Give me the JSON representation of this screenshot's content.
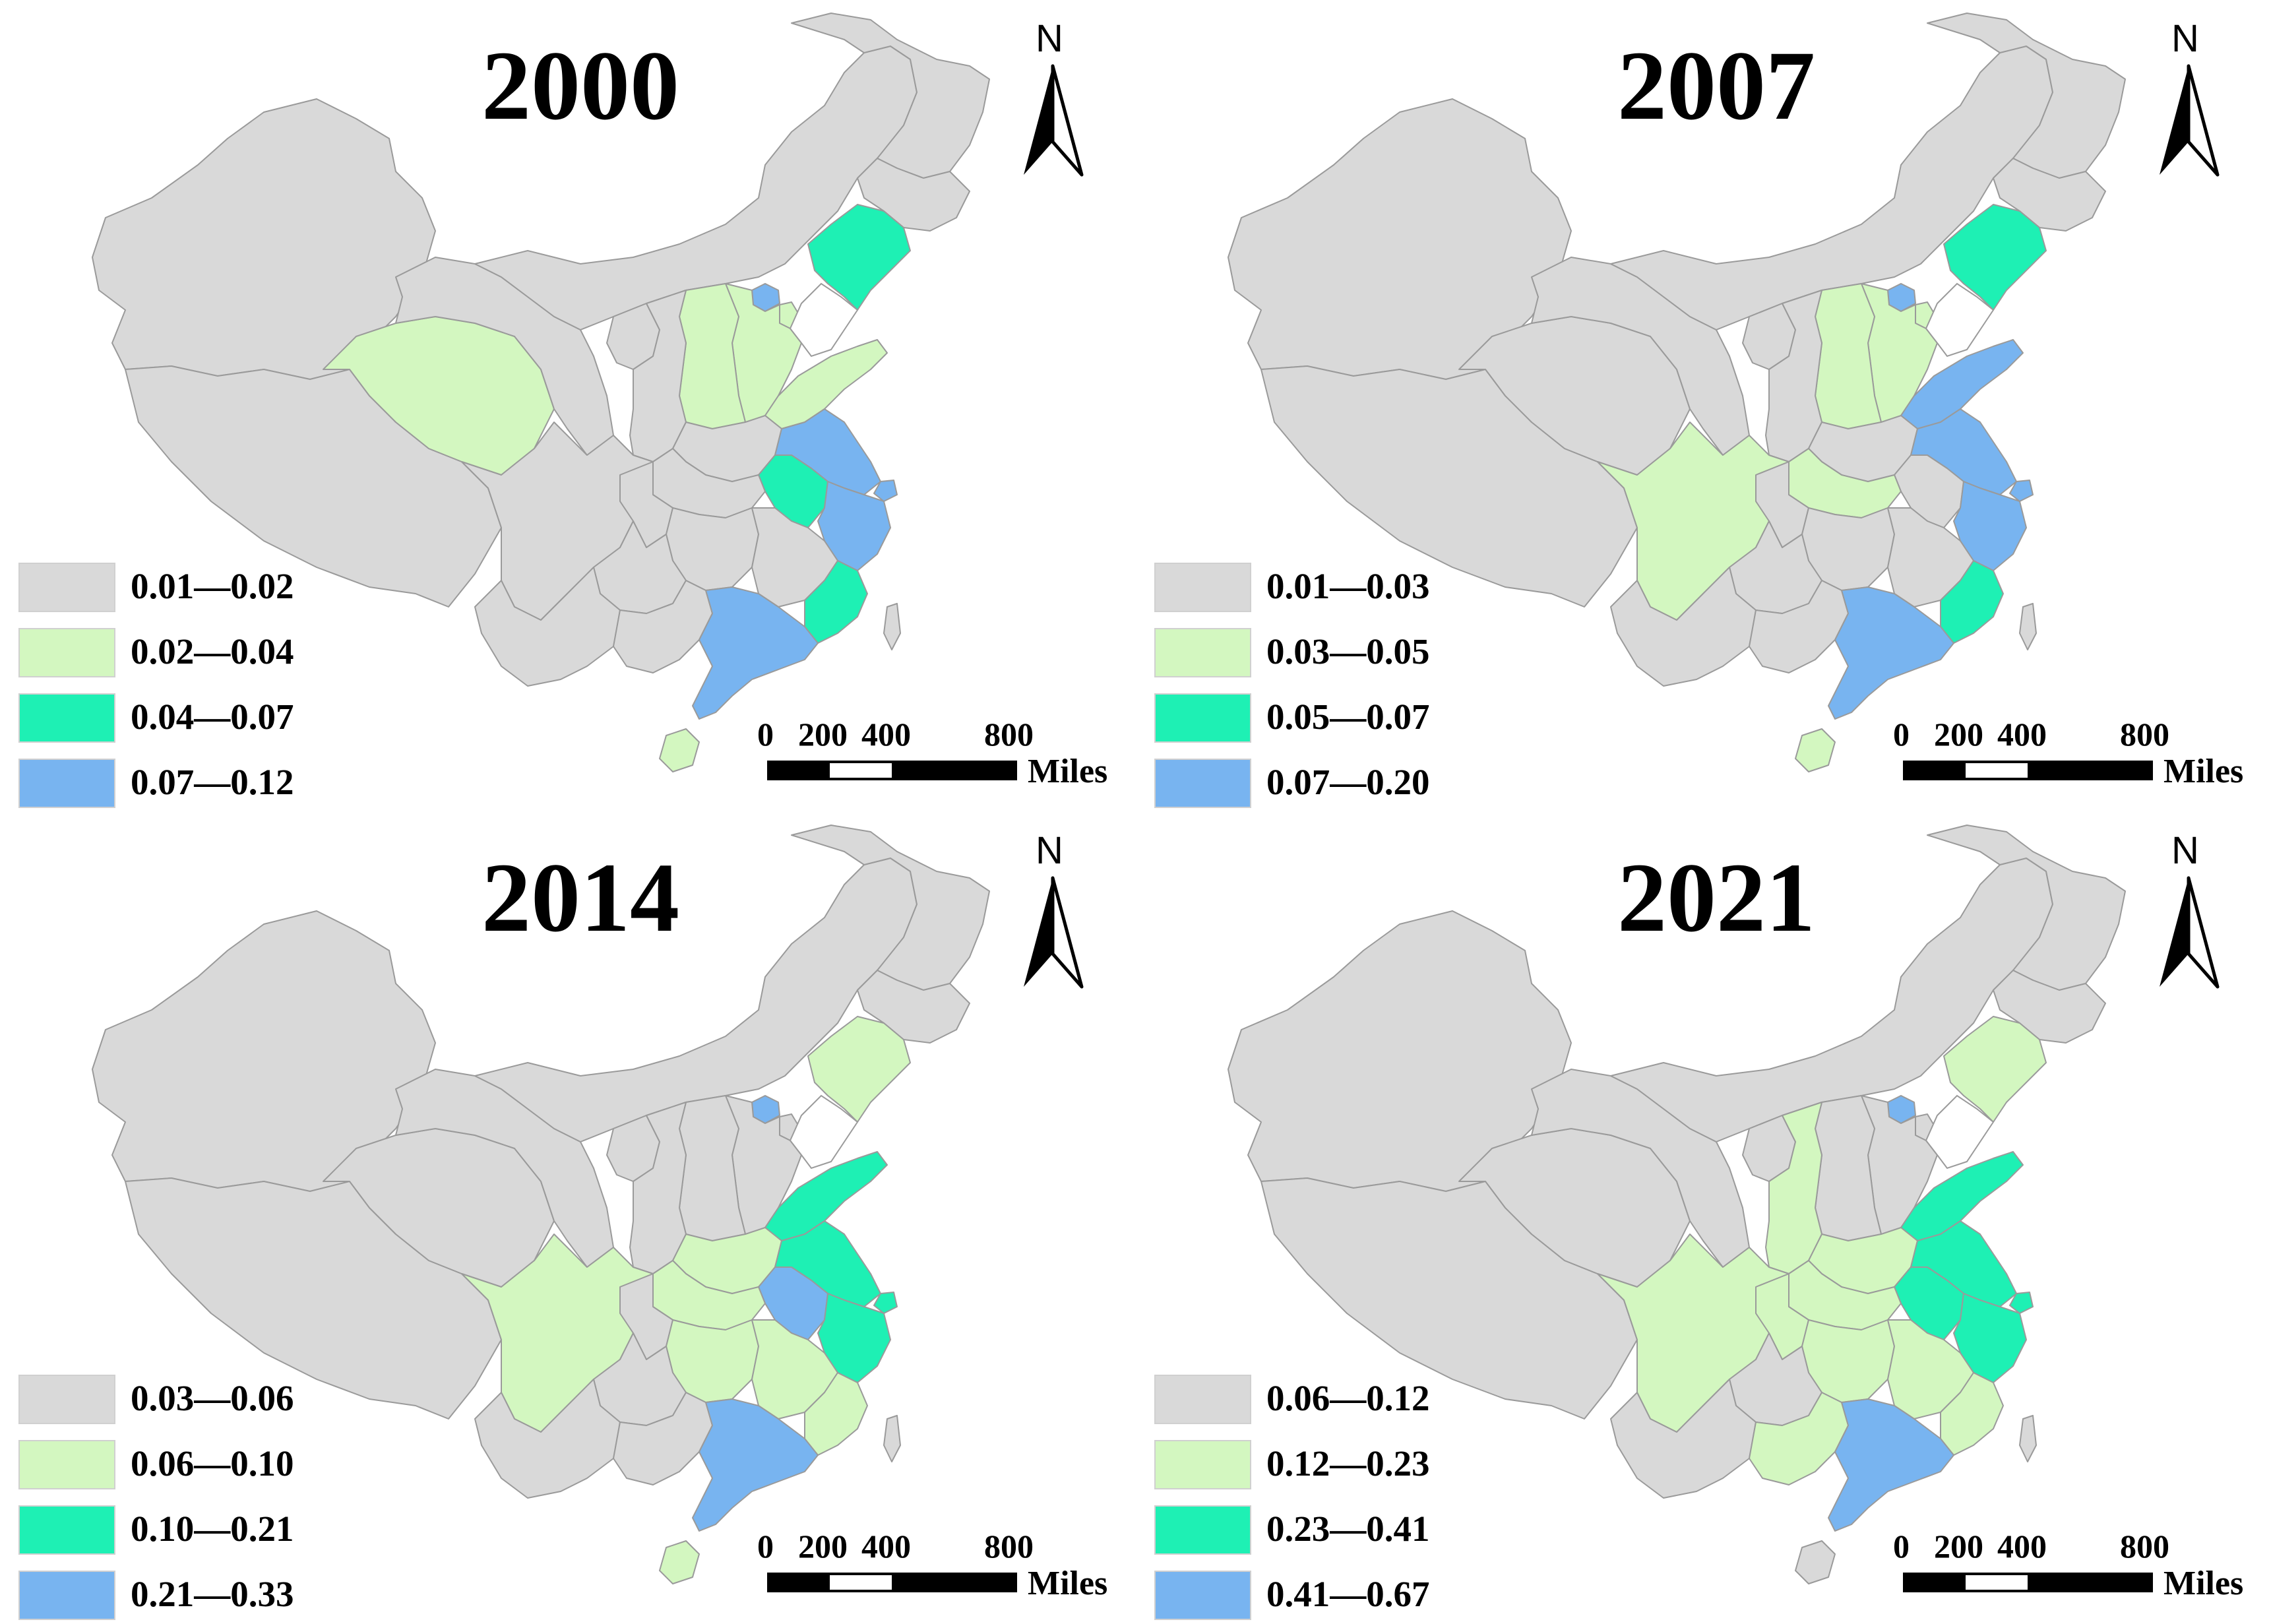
{
  "colors": {
    "class1": "#d9d9d9",
    "class2": "#d3f7c0",
    "class3": "#1ef0b4",
    "class4": "#78b4f0",
    "border": "#9a9a9a"
  },
  "north_arrow": {
    "label": "N"
  },
  "scale_bar": {
    "labels": [
      "0",
      "200",
      "400",
      "800"
    ],
    "unit": "Miles"
  },
  "panels": [
    {
      "year": "2000",
      "legend": [
        "0.01—0.02",
        "0.02—0.04",
        "0.04—0.07",
        "0.07—0.12"
      ],
      "highlighted_regions": [
        {
          "region": "liaoning",
          "class": 3
        },
        {
          "region": "beijing",
          "class": 4
        },
        {
          "region": "hebei",
          "class": 2
        },
        {
          "region": "tianjin",
          "class": 2
        },
        {
          "region": "shanxi",
          "class": 2
        },
        {
          "region": "shandong",
          "class": 2
        },
        {
          "region": "qinghai",
          "class": 2
        },
        {
          "region": "anhui",
          "class": 3
        },
        {
          "region": "jiangsu",
          "class": 4
        },
        {
          "region": "shanghai",
          "class": 4
        },
        {
          "region": "zhejiang",
          "class": 4
        },
        {
          "region": "fujian",
          "class": 3
        },
        {
          "region": "guangdong",
          "class": 4
        },
        {
          "region": "hainan",
          "class": 2
        }
      ]
    },
    {
      "year": "2007",
      "legend": [
        "0.01—0.03",
        "0.03—0.05",
        "0.05—0.07",
        "0.07—0.20"
      ],
      "highlighted_regions": [
        {
          "region": "liaoning",
          "class": 3
        },
        {
          "region": "beijing",
          "class": 4
        },
        {
          "region": "hebei",
          "class": 2
        },
        {
          "region": "tianjin",
          "class": 2
        },
        {
          "region": "shanxi",
          "class": 2
        },
        {
          "region": "shandong",
          "class": 4
        },
        {
          "region": "jiangsu",
          "class": 4
        },
        {
          "region": "shanghai",
          "class": 4
        },
        {
          "region": "zhejiang",
          "class": 4
        },
        {
          "region": "sichuan",
          "class": 2
        },
        {
          "region": "hubei",
          "class": 2
        },
        {
          "region": "fujian",
          "class": 3
        },
        {
          "region": "guangdong",
          "class": 4
        },
        {
          "region": "hainan",
          "class": 2
        }
      ]
    },
    {
      "year": "2014",
      "legend": [
        "0.03—0.06",
        "0.06—0.10",
        "0.10—0.21",
        "0.21—0.33"
      ],
      "highlighted_regions": [
        {
          "region": "liaoning",
          "class": 2
        },
        {
          "region": "beijing",
          "class": 4
        },
        {
          "region": "shandong",
          "class": 3
        },
        {
          "region": "jiangsu",
          "class": 3
        },
        {
          "region": "shanghai",
          "class": 3
        },
        {
          "region": "zhejiang",
          "class": 3
        },
        {
          "region": "anhui",
          "class": 4
        },
        {
          "region": "sichuan",
          "class": 2
        },
        {
          "region": "henan",
          "class": 2
        },
        {
          "region": "hubei",
          "class": 2
        },
        {
          "region": "hunan",
          "class": 2
        },
        {
          "region": "jiangxi",
          "class": 2
        },
        {
          "region": "fujian",
          "class": 2
        },
        {
          "region": "guangdong",
          "class": 4
        },
        {
          "region": "hainan",
          "class": 2
        }
      ]
    },
    {
      "year": "2021",
      "legend": [
        "0.06—0.12",
        "0.12—0.23",
        "0.23—0.41",
        "0.41—0.67"
      ],
      "highlighted_regions": [
        {
          "region": "liaoning",
          "class": 2
        },
        {
          "region": "beijing",
          "class": 4
        },
        {
          "region": "shandong",
          "class": 3
        },
        {
          "region": "jiangsu",
          "class": 3
        },
        {
          "region": "anhui",
          "class": 3
        },
        {
          "region": "shanghai",
          "class": 3
        },
        {
          "region": "zhejiang",
          "class": 3
        },
        {
          "region": "sichuan",
          "class": 2
        },
        {
          "region": "chongqing",
          "class": 2
        },
        {
          "region": "shaanxi",
          "class": 2
        },
        {
          "region": "henan",
          "class": 2
        },
        {
          "region": "hubei",
          "class": 2
        },
        {
          "region": "hunan",
          "class": 2
        },
        {
          "region": "jiangxi",
          "class": 2
        },
        {
          "region": "fujian",
          "class": 2
        },
        {
          "region": "guangxi",
          "class": 2
        },
        {
          "region": "guangdong",
          "class": 4
        }
      ]
    }
  ]
}
